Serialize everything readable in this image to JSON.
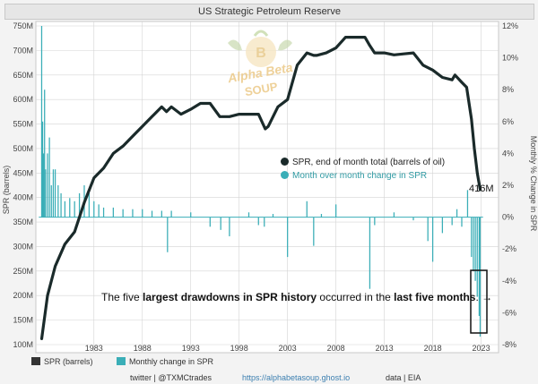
{
  "chart_data": {
    "type": "line+bar",
    "title": "US Strategic Petroleum Reserve",
    "ylabel_left": "SPR (barrels)",
    "ylabel_right": "Monthly % Change in SPR",
    "ylim_left": [
      100,
      750
    ],
    "ylim_right": [
      -8,
      12
    ],
    "yticks_left": [
      "100M",
      "150M",
      "200M",
      "250M",
      "300M",
      "350M",
      "400M",
      "450M",
      "500M",
      "550M",
      "600M",
      "650M",
      "700M",
      "750M"
    ],
    "yticks_left_values": [
      100,
      150,
      200,
      250,
      300,
      350,
      400,
      450,
      500,
      550,
      600,
      650,
      700,
      750
    ],
    "yticks_right": [
      "-8%",
      "-6%",
      "-4%",
      "-2%",
      "0%",
      "2%",
      "4%",
      "6%",
      "8%",
      "10%",
      "12%"
    ],
    "yticks_right_values": [
      -8,
      -6,
      -4,
      -2,
      0,
      2,
      4,
      6,
      8,
      10,
      12
    ],
    "xticks": [
      "1983",
      "1988",
      "1993",
      "1998",
      "2003",
      "2008",
      "2013",
      "2018",
      "2023"
    ],
    "xticks_values": [
      1983,
      1988,
      1993,
      1998,
      2003,
      2008,
      2013,
      2018,
      2023
    ],
    "xlim": [
      1977.0,
      2024.8
    ],
    "series_line": {
      "name": "SPR, end of month total (barrels of oil)",
      "unit": "million barrels",
      "x": [
        1977.6,
        1978.2,
        1979.0,
        1980.0,
        1981.0,
        1982.0,
        1983.0,
        1984.0,
        1985.0,
        1986.0,
        1987.0,
        1988.0,
        1989.0,
        1990.0,
        1990.5,
        1991.0,
        1992.0,
        1993.0,
        1994.0,
        1995.0,
        1996.0,
        1997.0,
        1998.0,
        1999.0,
        2000.0,
        2000.7,
        2001.0,
        2002.0,
        2003.0,
        2004.0,
        2005.0,
        2005.7,
        2006.0,
        2007.0,
        2008.0,
        2009.0,
        2010.0,
        2011.0,
        2011.5,
        2012.0,
        2013.0,
        2014.0,
        2015.0,
        2016.0,
        2017.0,
        2018.0,
        2019.0,
        2020.0,
        2020.3,
        2021.0,
        2021.5,
        2022.0,
        2022.3,
        2022.6,
        2022.9
      ],
      "values": [
        112,
        200,
        260,
        305,
        330,
        390,
        440,
        460,
        490,
        505,
        525,
        545,
        565,
        585,
        575,
        585,
        570,
        580,
        592,
        592,
        565,
        565,
        570,
        570,
        570,
        540,
        545,
        585,
        600,
        670,
        695,
        690,
        690,
        695,
        705,
        727,
        727,
        727,
        710,
        695,
        695,
        691,
        693,
        695,
        670,
        660,
        645,
        640,
        650,
        635,
        625,
        560,
        500,
        450,
        416
      ]
    },
    "series_bar": {
      "name": "Month over month change in SPR",
      "unit": "percent",
      "x": [
        1977.6,
        1977.7,
        1977.8,
        1977.9,
        1978.0,
        1978.2,
        1978.4,
        1978.6,
        1978.8,
        1979.0,
        1979.3,
        1979.6,
        1980.0,
        1980.5,
        1981.0,
        1981.5,
        1982.0,
        1982.5,
        1983.0,
        1983.5,
        1984.0,
        1985.0,
        1986.0,
        1987.0,
        1988.0,
        1989.0,
        1990.0,
        1990.6,
        1991.0,
        1993.0,
        1995.0,
        1996.1,
        1997.0,
        1999.0,
        2000.0,
        2000.6,
        2001.5,
        2003.0,
        2005.0,
        2005.7,
        2006.5,
        2008.0,
        2011.5,
        2012.0,
        2014.0,
        2016.0,
        2017.5,
        2018.0,
        2019.0,
        2020.0,
        2020.5,
        2021.0,
        2021.6,
        2022.0,
        2022.2,
        2022.4,
        2022.6,
        2022.8,
        2022.9
      ],
      "values": [
        12,
        6,
        4,
        8,
        3,
        4,
        5,
        2,
        3,
        3,
        2,
        1.5,
        1,
        1.2,
        1,
        1.5,
        2,
        1.5,
        1,
        0.8,
        0.6,
        0.6,
        0.5,
        0.5,
        0.5,
        0.4,
        0.4,
        -2.2,
        0.4,
        0.3,
        -0.6,
        -0.8,
        -1.2,
        0.3,
        -0.5,
        -0.6,
        0.2,
        -2.5,
        1.0,
        -1.8,
        0.2,
        0.8,
        -4.5,
        -0.5,
        0.3,
        -0.2,
        -1.5,
        -2.8,
        -1.0,
        -0.5,
        0.5,
        -0.6,
        1.7,
        -2.5,
        -3.4,
        -4.0,
        -5.0,
        -6.2,
        -7.5
      ]
    },
    "end_label": "416M",
    "legend": {
      "line_label": "SPR, end of month total (barrels of oil)",
      "bar_label": "Month over month change in SPR"
    },
    "annotation": {
      "part1": "The five ",
      "part2": "largest drawdowns in SPR history",
      "part3": " occurred in the ",
      "part4": "last five months",
      "part5": ".",
      "arrow": "→"
    },
    "colors": {
      "line": "#1a2a2a",
      "bar": "#3aaeb7",
      "grid": "#d4d4d4",
      "plot_bg": "#ffffff"
    }
  },
  "bottom_legend": {
    "line": "SPR (barrels)",
    "bar": "Monthly change in SPR"
  },
  "footer": {
    "twitter": "twitter | @TXMCtrades",
    "link": "https://alphabetasoup.ghost.io",
    "source": "data | EIA"
  },
  "logo": {
    "text_line1": "Alpha Beta",
    "text_line2": "SOUP"
  }
}
